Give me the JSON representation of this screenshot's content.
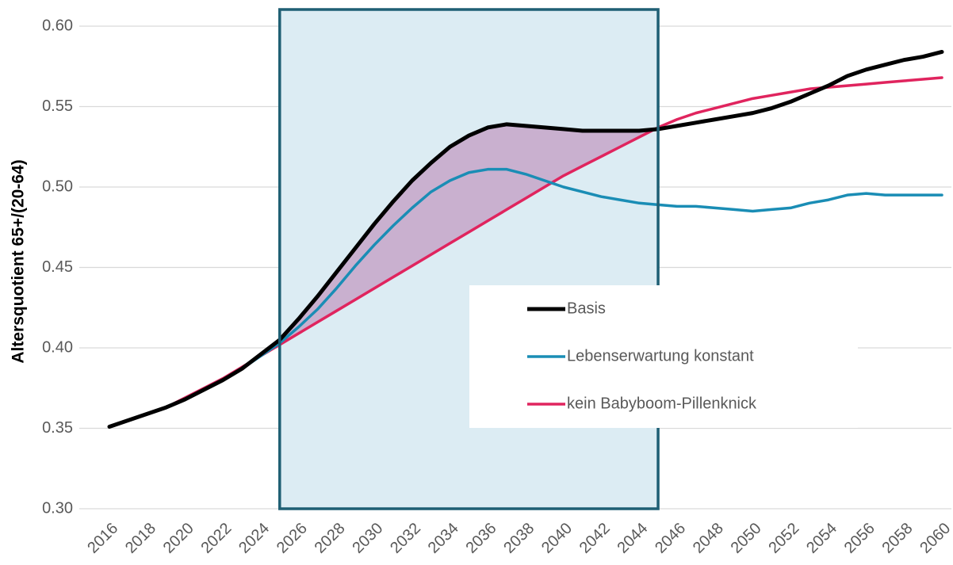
{
  "chart_data": {
    "type": "line",
    "y_label": "Altersquotient 65+/(20-64)",
    "x": [
      2016,
      2017,
      2018,
      2019,
      2020,
      2021,
      2022,
      2023,
      2024,
      2025,
      2026,
      2027,
      2028,
      2029,
      2030,
      2031,
      2032,
      2033,
      2034,
      2035,
      2036,
      2037,
      2038,
      2039,
      2040,
      2041,
      2042,
      2043,
      2044,
      2045,
      2046,
      2047,
      2048,
      2049,
      2050,
      2051,
      2052,
      2053,
      2054,
      2055,
      2056,
      2057,
      2058,
      2059,
      2060
    ],
    "series": [
      {
        "name": "Basis",
        "color": "#000000",
        "width": 5,
        "values": [
          0.351,
          0.355,
          0.359,
          0.363,
          0.368,
          0.374,
          0.38,
          0.387,
          0.396,
          0.405,
          0.418,
          0.432,
          0.447,
          0.462,
          0.477,
          0.491,
          0.504,
          0.515,
          0.525,
          0.532,
          0.537,
          0.539,
          0.538,
          0.537,
          0.536,
          0.535,
          0.535,
          0.535,
          0.535,
          0.536,
          0.538,
          0.54,
          0.542,
          0.544,
          0.546,
          0.549,
          0.553,
          0.558,
          0.563,
          0.569,
          0.573,
          0.576,
          0.579,
          0.581,
          0.584
        ]
      },
      {
        "name": "Lebenserwartung konstant",
        "color": "#1a8db5",
        "width": 3.5,
        "values": [
          0.351,
          0.355,
          0.359,
          0.363,
          0.368,
          0.374,
          0.38,
          0.387,
          0.395,
          0.403,
          0.413,
          0.424,
          0.437,
          0.451,
          0.464,
          0.476,
          0.487,
          0.497,
          0.504,
          0.509,
          0.511,
          0.511,
          0.508,
          0.504,
          0.5,
          0.497,
          0.494,
          0.492,
          0.49,
          0.489,
          0.488,
          0.488,
          0.487,
          0.486,
          0.485,
          0.486,
          0.487,
          0.49,
          0.492,
          0.495,
          0.496,
          0.495,
          0.495,
          0.495,
          0.495
        ]
      },
      {
        "name": "kein Babyboom-Pillenknick",
        "color": "#e0245e",
        "width": 3.5,
        "values": [
          0.351,
          0.355,
          0.359,
          0.363,
          0.369,
          0.375,
          0.381,
          0.388,
          0.395,
          0.402,
          0.409,
          0.416,
          0.423,
          0.43,
          0.437,
          0.444,
          0.451,
          0.458,
          0.465,
          0.472,
          0.479,
          0.486,
          0.493,
          0.5,
          0.507,
          0.513,
          0.519,
          0.525,
          0.531,
          0.537,
          0.542,
          0.546,
          0.549,
          0.552,
          0.555,
          0.557,
          0.559,
          0.561,
          0.562,
          0.563,
          0.564,
          0.565,
          0.566,
          0.567,
          0.568
        ]
      }
    ],
    "xlim": [
      2016,
      2060
    ],
    "xticks": [
      2016,
      2018,
      2020,
      2022,
      2024,
      2026,
      2028,
      2030,
      2032,
      2034,
      2036,
      2038,
      2040,
      2042,
      2044,
      2046,
      2048,
      2050,
      2052,
      2054,
      2056,
      2058,
      2060
    ],
    "ylim": [
      0.3,
      0.6
    ],
    "yticks": [
      {
        "value": 0.3,
        "label": "0.30"
      },
      {
        "value": 0.35,
        "label": "0.35"
      },
      {
        "value": 0.4,
        "label": "0.40"
      },
      {
        "value": 0.45,
        "label": "0.45"
      },
      {
        "value": 0.5,
        "label": "0.50"
      },
      {
        "value": 0.55,
        "label": "0.55"
      },
      {
        "value": 0.6,
        "label": "0.60"
      }
    ],
    "grid": true,
    "highlight_range": [
      2025,
      2045
    ],
    "legend": "center-right"
  }
}
